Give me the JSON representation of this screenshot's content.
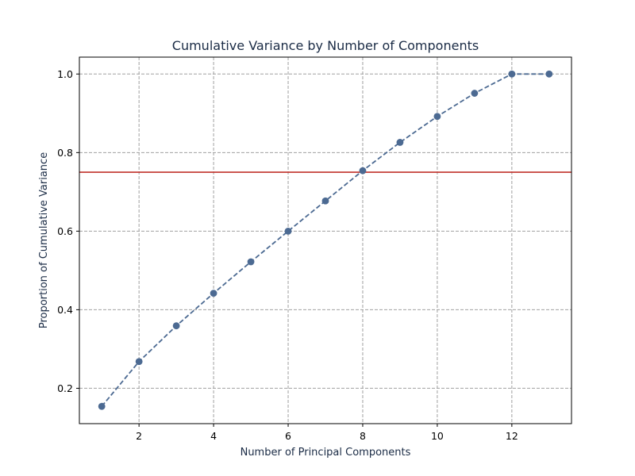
{
  "chart_data": {
    "type": "line",
    "title": "Cumulative Variance by Number of Components",
    "xlabel": "Number of Principal Components",
    "ylabel": "Proportion of Cumulative Variance",
    "xlim": [
      0.4,
      13.6
    ],
    "ylim": [
      0.11,
      1.043
    ],
    "x_ticks": [
      2,
      4,
      6,
      8,
      10,
      12
    ],
    "y_ticks": [
      0.2,
      0.4,
      0.6,
      0.8,
      1.0
    ],
    "x_tick_labels": [
      "2",
      "4",
      "6",
      "8",
      "10",
      "12"
    ],
    "y_tick_labels": [
      "0.2",
      "0.4",
      "0.6",
      "0.8",
      "1.0"
    ],
    "grid": true,
    "series": [
      {
        "x": [
          1,
          2,
          3,
          4,
          5,
          6,
          7,
          8,
          9,
          10,
          11,
          12,
          13
        ],
        "values": [
          0.154,
          0.268,
          0.359,
          0.442,
          0.522,
          0.6,
          0.677,
          0.754,
          0.826,
          0.892,
          0.951,
          1.0,
          1.0
        ],
        "line_style": "dashed",
        "marker": "circle",
        "color": "#4c6a92"
      }
    ],
    "reference_lines": [
      {
        "orientation": "horizontal",
        "y": 0.75,
        "color": "#c0302a"
      }
    ],
    "colors": {
      "title": "#1a2b45",
      "axis_label": "#1a2b45",
      "grid": "#a0a0a0"
    }
  }
}
